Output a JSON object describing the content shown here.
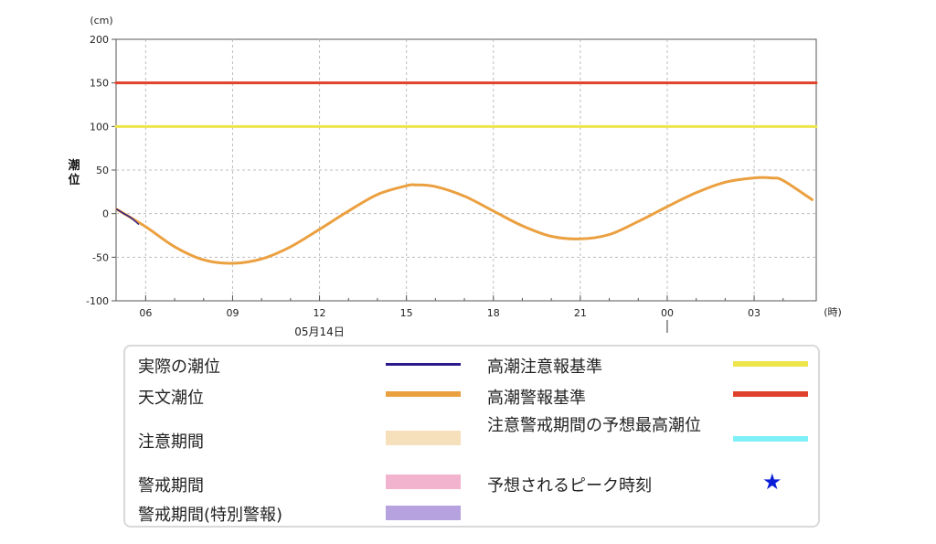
{
  "chart_data": {
    "type": "line",
    "ylabel": "潮位",
    "yunit": "(cm)",
    "xunit": "(時)",
    "date_label": "05月14日",
    "ylim": [
      -100,
      200
    ],
    "yticks": [
      "200",
      "150",
      "100",
      "50",
      "0",
      "-50",
      "-100"
    ],
    "xticks": [
      "06",
      "09",
      "12",
      "15",
      "18",
      "21",
      "00",
      "03"
    ],
    "grid": true,
    "series": [
      {
        "name": "高潮警報基準",
        "color": "#e0412a",
        "x": [
          5.0,
          29.0
        ],
        "y": [
          150,
          150
        ]
      },
      {
        "name": "高潮注意報基準",
        "color": "#ede54a",
        "x": [
          5.0,
          29.0
        ],
        "y": [
          100,
          100
        ]
      },
      {
        "name": "天文潮位",
        "color": "#eba040",
        "x": [
          5.0,
          6.0,
          7.0,
          8.0,
          9.0,
          10.0,
          11.0,
          12.0,
          13.0,
          14.0,
          15.0,
          15.3,
          16.0,
          17.0,
          18.0,
          19.0,
          20.0,
          21.0,
          22.0,
          23.0,
          24.0,
          25.0,
          26.0,
          27.0,
          27.6,
          28.0,
          29.0
        ],
        "y": [
          5,
          -15,
          -38,
          -53,
          -57,
          -52,
          -38,
          -18,
          3,
          22,
          32,
          33,
          31,
          20,
          3,
          -14,
          -26,
          -29,
          -24,
          -9,
          8,
          24,
          36,
          41,
          41,
          38,
          16
        ]
      },
      {
        "name": "実際の潮位",
        "color": "#2a1a8c",
        "x": [
          5.0,
          5.25,
          5.5,
          5.75
        ],
        "y": [
          5,
          0,
          -5,
          -12
        ]
      }
    ]
  },
  "legend": {
    "items": [
      {
        "label": "実際の潮位",
        "color": "#2a1a8c",
        "kind": "line"
      },
      {
        "label": "天文潮位",
        "color": "#eba040",
        "kind": "thick-line"
      },
      {
        "label": "注意期間",
        "color": "#f6dfbb",
        "kind": "block"
      },
      {
        "label": "警戒期間",
        "color": "#f2b3ce",
        "kind": "block"
      },
      {
        "label": "警戒期間(特別警報)",
        "color": "#b7a2e0",
        "kind": "block"
      },
      {
        "label": "高潮注意報基準",
        "color": "#ede54a",
        "kind": "thick-line"
      },
      {
        "label": "高潮警報基準",
        "color": "#e0412a",
        "kind": "thick-line"
      },
      {
        "label": "注意警戒期間の予想最高潮位",
        "color": "#7ef0f8",
        "kind": "thick-line"
      },
      {
        "label": "予想されるピーク時刻",
        "color": "#0a1ed8",
        "kind": "star",
        "symbol": "★"
      }
    ]
  }
}
